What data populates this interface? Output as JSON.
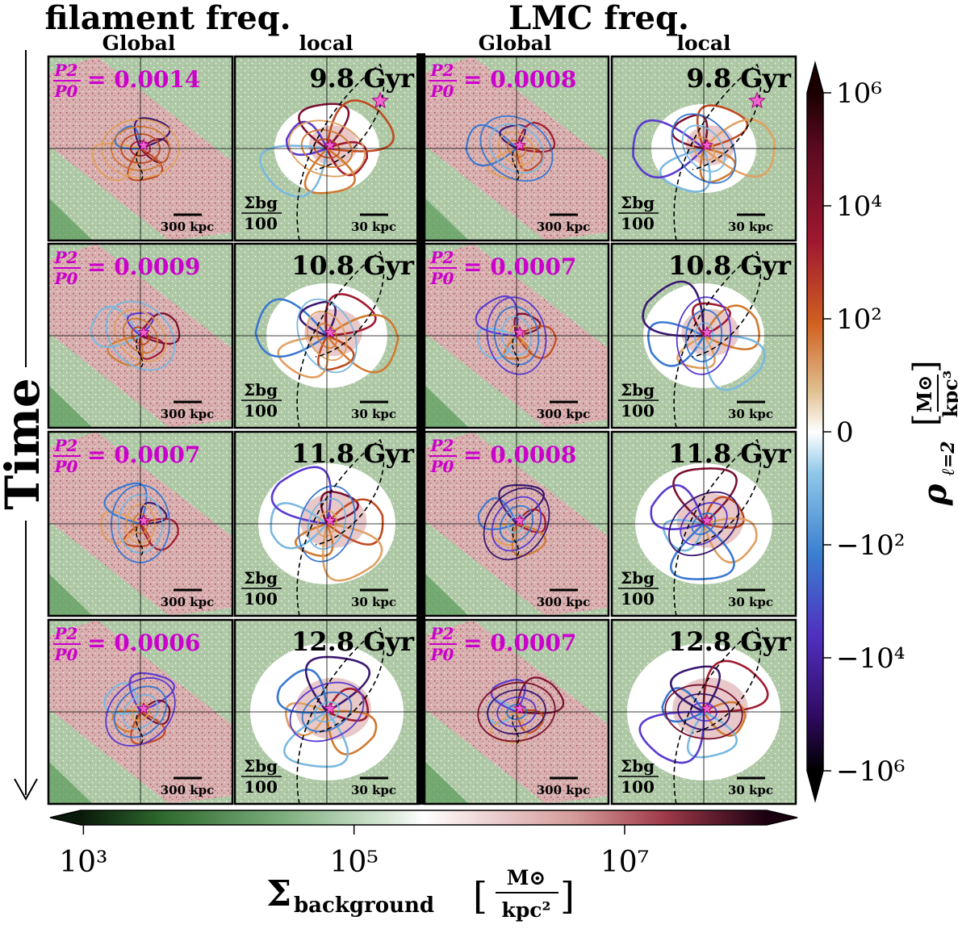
{
  "chart_data": {
    "type": "heatmap",
    "title_left": "filament freq.",
    "title_right": "LMC freq.",
    "column_subtitles": [
      "Global",
      "local",
      "Global",
      "local"
    ],
    "time_axis_label": "Time",
    "rows": [
      {
        "time_label": "9.8 Gyr",
        "ratio_filament": "= 0.0014",
        "ratio_lmc": "= 0.0008"
      },
      {
        "time_label": "10.8 Gyr",
        "ratio_filament": "= 0.0009",
        "ratio_lmc": "= 0.0007"
      },
      {
        "time_label": "11.8 Gyr",
        "ratio_filament": "= 0.0007",
        "ratio_lmc": "= 0.0008"
      },
      {
        "time_label": "12.8 Gyr",
        "ratio_filament": "= 0.0006",
        "ratio_lmc": "= 0.0007"
      }
    ],
    "ratio_symbol": {
      "num": "P2",
      "den": "P0"
    },
    "scale_bars": {
      "global": "300 kpc",
      "local": "30 kpc"
    },
    "bg_note": {
      "num": "Σbg",
      "den": "100"
    },
    "colorbar_right": {
      "label": "ρℓ=2 [M⊙/kpc³]",
      "label_main": "ρ",
      "label_sub": "ℓ=2",
      "unit_num": "M⊙",
      "unit_den": "kpc³",
      "ticks": [
        "10⁶",
        "10⁴",
        "10²",
        "0",
        "−10²",
        "−10⁴",
        "−10⁶"
      ],
      "tick_values": [
        1000000,
        10000,
        100,
        0,
        -100,
        -10000,
        -1000000
      ],
      "scale": "symlog"
    },
    "colorbar_bottom": {
      "label": "Σbackground [M⊙/kpc²]",
      "label_main": "Σ",
      "label_sub": "background",
      "unit_num": "M⊙",
      "unit_den": "kpc²",
      "ticks": [
        "10³",
        "10⁵",
        "10⁷"
      ],
      "tick_values": [
        1000,
        100000,
        10000000
      ],
      "scale": "log"
    },
    "colors": {
      "ratio_text": "#cc00cc",
      "background_green": "#afc9a7",
      "background_pink": "#d4a5a5",
      "star_marker": "#ee66cc"
    }
  }
}
